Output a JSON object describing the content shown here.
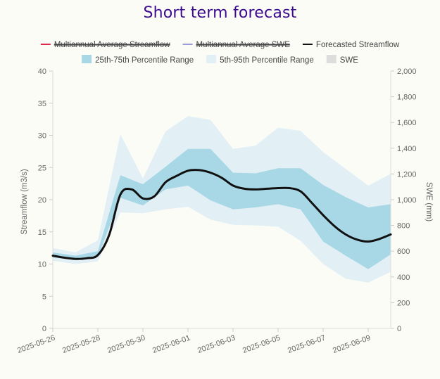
{
  "chart_data": {
    "type": "line",
    "title": "Short term forecast",
    "ylabel": "Streamflow (m3/s)",
    "y2label": "SWE (mm)",
    "ylim": [
      0,
      40
    ],
    "y2lim": [
      0,
      2000
    ],
    "yticks": [
      0,
      5,
      10,
      15,
      20,
      25,
      30,
      35,
      40
    ],
    "y2ticks": [
      "0",
      "200",
      "400",
      "600",
      "800",
      "1,000",
      "1,200",
      "1,400",
      "1,600",
      "1,800",
      "2,000"
    ],
    "xticks": [
      "2025-05-26",
      "2025-05-28",
      "2025-05-30",
      "2025-06-01",
      "2025-06-03",
      "2025-06-05",
      "2025-06-07",
      "2025-06-09"
    ],
    "x_dates": [
      "2025-05-26",
      "2025-05-27",
      "2025-05-28",
      "2025-05-29",
      "2025-05-30",
      "2025-05-31",
      "2025-06-01",
      "2025-06-02",
      "2025-06-03",
      "2025-06-04",
      "2025-06-05",
      "2025-06-06",
      "2025-06-07",
      "2025-06-08",
      "2025-06-09",
      "2025-06-10"
    ],
    "legend": {
      "placement": "top-center",
      "items": [
        {
          "label": "Multiannual Average Streamflow",
          "symbol": "line",
          "color": "#e0284e",
          "hidden": true
        },
        {
          "label": "Multiannual Average SWE",
          "symbol": "line",
          "color": "#9b9bd8",
          "hidden": true
        },
        {
          "label": "Forecasted Streamflow",
          "symbol": "line",
          "color": "#111111",
          "hidden": false
        },
        {
          "label": "25th-75th Percentile Range",
          "symbol": "box",
          "color": "#a8d8e6",
          "hidden": false
        },
        {
          "label": "5th-95th Percentile Range",
          "symbol": "box",
          "color": "#e2f0f6",
          "hidden": false
        },
        {
          "label": "SWE",
          "symbol": "box",
          "color": "#dddddd",
          "hidden": false
        }
      ]
    },
    "series": [
      {
        "name": "Forecasted Streamflow",
        "color": "#111111",
        "x": [
          0,
          0.5,
          1,
          1.5,
          2,
          2.5,
          3,
          3.5,
          4,
          4.5,
          5,
          5.5,
          6,
          6.5,
          7,
          7.5,
          8,
          8.5,
          9,
          9.5,
          10,
          10.5,
          11,
          11.5,
          12,
          12.5,
          13,
          13.5,
          14,
          14.5,
          15
        ],
        "values": [
          11.3,
          11.0,
          10.8,
          10.9,
          11.4,
          14.5,
          20.8,
          21.6,
          20.2,
          20.5,
          22.7,
          23.7,
          24.5,
          24.6,
          24.2,
          23.4,
          22.2,
          21.7,
          21.6,
          21.7,
          21.8,
          21.8,
          21.3,
          19.5,
          17.6,
          15.9,
          14.6,
          13.8,
          13.5,
          13.9,
          14.6
        ]
      },
      {
        "name": "25th-75th Percentile Range",
        "color": "#a8d8e6",
        "x": [
          0,
          1,
          2,
          3,
          4,
          5,
          6,
          7,
          8,
          9,
          10,
          11,
          12,
          13,
          14,
          15
        ],
        "lower": [
          11.0,
          10.7,
          11.1,
          20.3,
          19.1,
          21.6,
          22.2,
          19.9,
          18.5,
          18.8,
          19.3,
          18.5,
          13.5,
          11.3,
          9.2,
          11.5
        ],
        "upper": [
          11.8,
          11.3,
          12.0,
          23.8,
          22.4,
          25.1,
          27.9,
          27.9,
          24.2,
          24.1,
          24.9,
          24.9,
          22.3,
          20.4,
          18.8,
          19.3
        ]
      },
      {
        "name": "5th-95th Percentile Range",
        "color": "#e2f0f6",
        "x": [
          0,
          1,
          2,
          3,
          4,
          5,
          6,
          7,
          8,
          9,
          10,
          11,
          12,
          13,
          14,
          15
        ],
        "lower": [
          10.5,
          10.0,
          10.4,
          18.0,
          17.9,
          18.5,
          18.9,
          16.9,
          16.1,
          16.0,
          15.8,
          13.6,
          10.0,
          7.7,
          7.1,
          8.8
        ],
        "upper": [
          12.5,
          11.8,
          13.7,
          30.2,
          23.3,
          30.6,
          33.0,
          32.4,
          27.9,
          28.4,
          31.2,
          30.7,
          27.4,
          24.8,
          22.2,
          24.0
        ]
      }
    ],
    "grid": false
  }
}
